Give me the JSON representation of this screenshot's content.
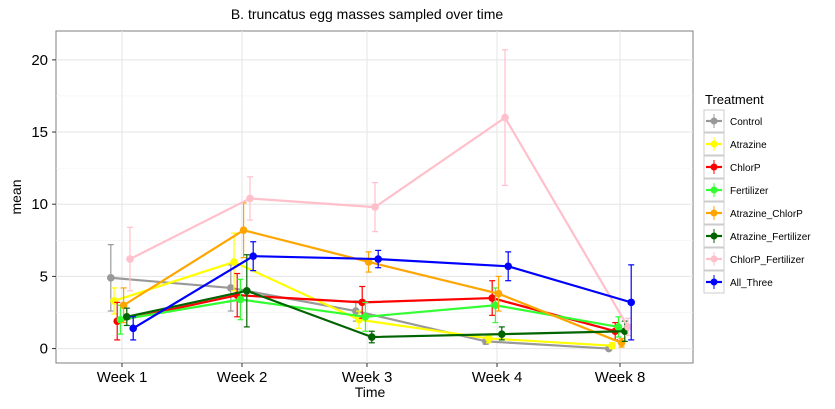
{
  "chart_data": {
    "type": "line",
    "title": "B. truncatus egg masses sampled over time",
    "xlabel": "Time",
    "ylabel": "mean",
    "categories": [
      "Week 1",
      "Week 2",
      "Week 3",
      "Week 4",
      "Week 8"
    ],
    "ylim": [
      -1,
      22
    ],
    "yticks": [
      0,
      5,
      10,
      15,
      20
    ],
    "grid": true,
    "legend": {
      "title": "Treatment",
      "position": "right"
    },
    "series": [
      {
        "name": "Control",
        "color": "#999999",
        "values": [
          4.9,
          4.2,
          2.6,
          0.5,
          0.0
        ],
        "error": [
          [
            2.6,
            7.2
          ],
          [
            2.6,
            5.8
          ],
          [
            1.9,
            3.3
          ],
          [
            0.3,
            0.8
          ],
          [
            -0.1,
            0.1
          ]
        ]
      },
      {
        "name": "Atrazine",
        "color": "#ffff00",
        "values": [
          3.3,
          6.0,
          2.0,
          0.7,
          0.2
        ],
        "error": [
          [
            2.4,
            4.2
          ],
          [
            4.0,
            8.0
          ],
          [
            1.4,
            2.6
          ],
          [
            0.4,
            1.0
          ],
          [
            0.0,
            0.4
          ]
        ]
      },
      {
        "name": "ChlorP",
        "color": "#ff0000",
        "values": [
          1.9,
          3.7,
          3.2,
          3.5,
          1.2
        ],
        "error": [
          [
            0.6,
            3.2
          ],
          [
            2.2,
            5.2
          ],
          [
            2.1,
            4.3
          ],
          [
            2.3,
            4.7
          ],
          [
            0.6,
            1.8
          ]
        ]
      },
      {
        "name": "Fertilizer",
        "color": "#33ff33",
        "values": [
          2.0,
          3.4,
          2.2,
          3.0,
          1.5
        ],
        "error": [
          [
            1.0,
            3.0
          ],
          [
            2.0,
            4.8
          ],
          [
            1.2,
            3.2
          ],
          [
            1.8,
            4.2
          ],
          [
            0.8,
            2.2
          ]
        ]
      },
      {
        "name": "Atrazine_ChlorP",
        "color": "#ffa500",
        "values": [
          3.0,
          8.2,
          6.0,
          3.8,
          0.4
        ],
        "error": [
          [
            1.8,
            4.2
          ],
          [
            6.3,
            10.1
          ],
          [
            5.3,
            6.7
          ],
          [
            2.6,
            5.0
          ],
          [
            0.1,
            0.7
          ]
        ]
      },
      {
        "name": "Atrazine_Fertilizer",
        "color": "#006400",
        "values": [
          2.2,
          4.0,
          0.8,
          1.0,
          1.2
        ],
        "error": [
          [
            1.6,
            2.8
          ],
          [
            1.5,
            6.5
          ],
          [
            0.4,
            1.2
          ],
          [
            0.6,
            1.5
          ],
          [
            0.5,
            1.9
          ]
        ]
      },
      {
        "name": "ChlorP_Fertilizer",
        "color": "#ffc0cb",
        "values": [
          6.2,
          10.4,
          9.8,
          16.0,
          1.5
        ],
        "error": [
          [
            4.0,
            8.4
          ],
          [
            8.9,
            11.9
          ],
          [
            8.1,
            11.5
          ],
          [
            11.3,
            20.7
          ],
          [
            0.9,
            2.1
          ]
        ]
      },
      {
        "name": "All_Three",
        "color": "#0000ff",
        "values": [
          1.4,
          6.4,
          6.2,
          5.7,
          3.2
        ],
        "error": [
          [
            0.6,
            2.2
          ],
          [
            5.4,
            7.4
          ],
          [
            5.6,
            6.8
          ],
          [
            4.7,
            6.7
          ],
          [
            0.6,
            5.8
          ]
        ]
      }
    ]
  }
}
